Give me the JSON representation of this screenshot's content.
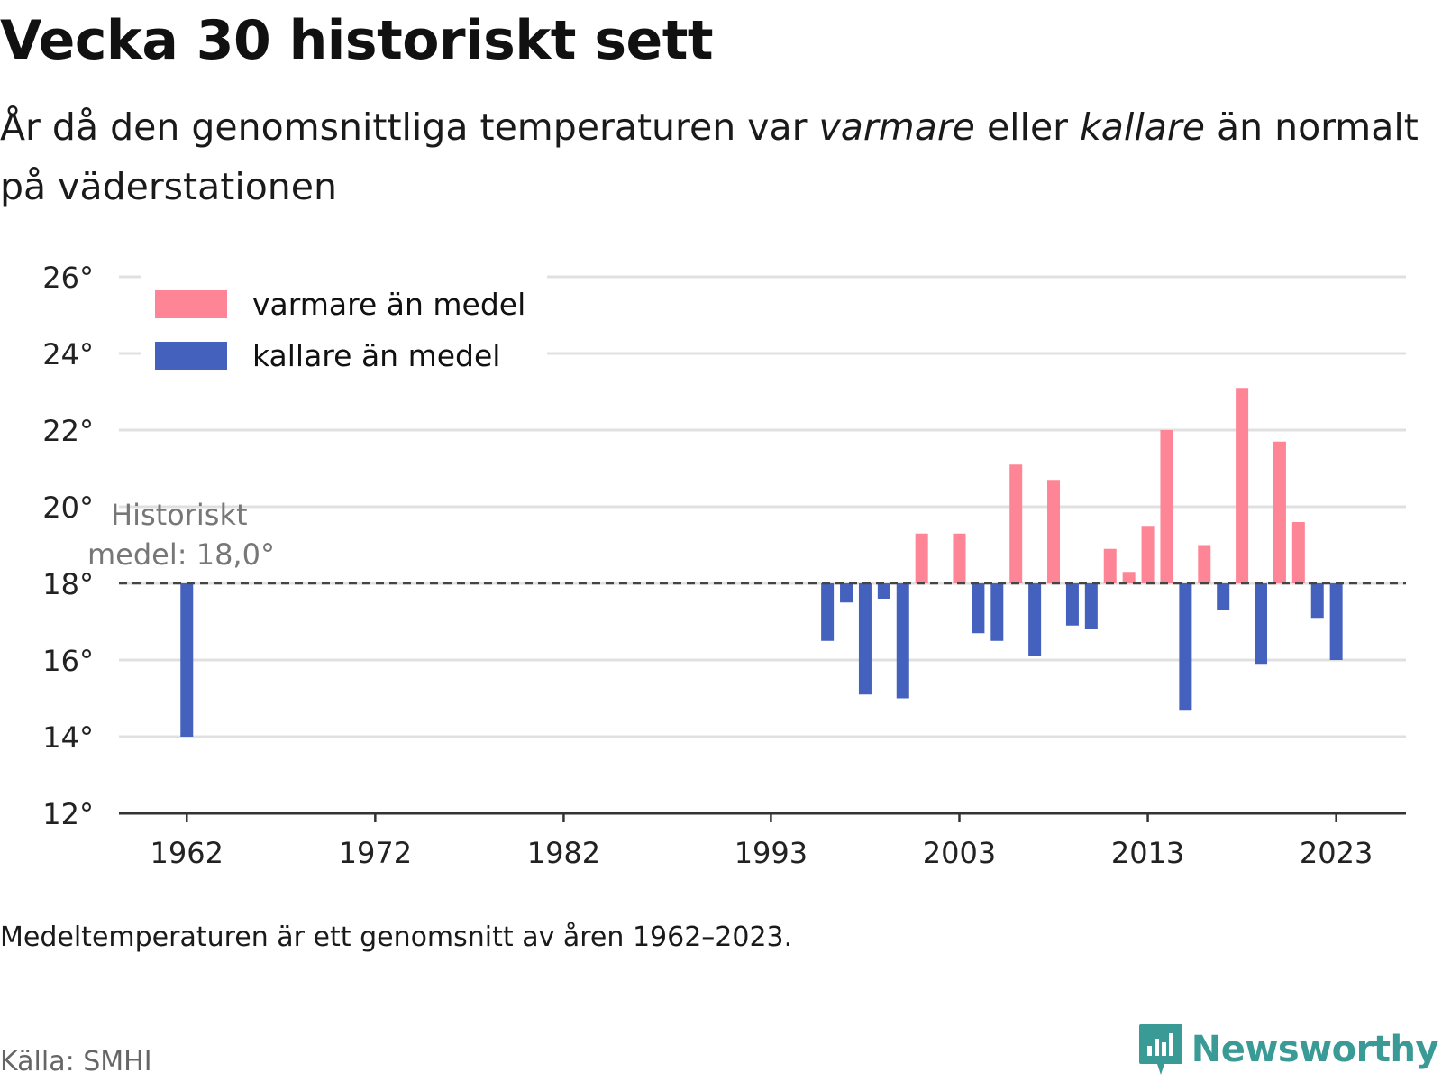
{
  "title": "Vecka 30 historiskt sett",
  "subtitle": {
    "part1": "År då den genomsnittliga temperaturen var ",
    "warm_word": "varmare",
    "part2": " eller ",
    "cold_word": "kallare",
    "part3": " än normalt på väderstationen"
  },
  "note": "Medeltemperaturen är ett genomsnitt av åren 1962–2023.",
  "source": "Källa: SMHI",
  "brand": "Newsworthy",
  "colors": {
    "warm": "#fd8595",
    "cold": "#4361bd",
    "grid": "#e0e0e0",
    "axis": "#333333",
    "mean": "#444444",
    "brand": "#3a9a95"
  },
  "chart_data": {
    "type": "bar",
    "baseline": 18.0,
    "baseline_label_line1": "Historiskt",
    "baseline_label_line2": "medel: 18,0°",
    "ylim": [
      12,
      26
    ],
    "yticks": [
      12,
      14,
      16,
      18,
      20,
      22,
      24,
      26
    ],
    "ytick_labels": [
      "12°",
      "14°",
      "16°",
      "18°",
      "20°",
      "22°",
      "24°",
      "26°"
    ],
    "xlim": [
      1958.4,
      2026.7
    ],
    "xticks": [
      1962,
      1972,
      1982,
      1993,
      2003,
      2013,
      2023
    ],
    "xtick_labels": [
      "1962",
      "1972",
      "1982",
      "1993",
      "2003",
      "2013",
      "2023"
    ],
    "grid": true,
    "legend_position": "top-left",
    "legend": [
      {
        "label": "varmare än medel",
        "color": "#fd8595"
      },
      {
        "label": "kallare än medel",
        "color": "#4361bd"
      }
    ],
    "x": [
      1962,
      1996,
      1997,
      1998,
      1999,
      2000,
      2001,
      2003,
      2004,
      2005,
      2006,
      2007,
      2008,
      2009,
      2010,
      2011,
      2012,
      2013,
      2014,
      2015,
      2016,
      2017,
      2018,
      2019,
      2020,
      2021,
      2022,
      2023
    ],
    "values": [
      14.0,
      16.5,
      17.5,
      15.1,
      17.6,
      15.0,
      19.3,
      19.3,
      16.7,
      16.5,
      21.1,
      16.1,
      20.7,
      16.9,
      16.8,
      18.9,
      18.3,
      19.5,
      22.0,
      14.7,
      19.0,
      17.3,
      23.1,
      15.9,
      21.7,
      19.6,
      17.1,
      16.0
    ]
  }
}
